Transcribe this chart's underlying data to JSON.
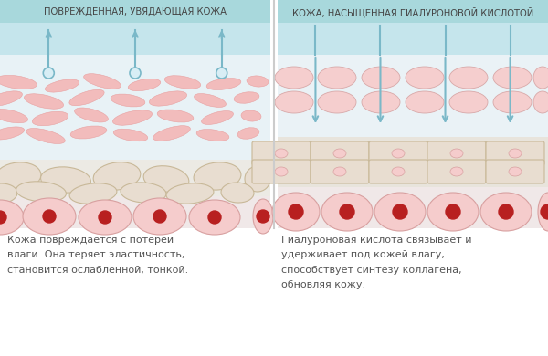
{
  "title_left": "ПОВРЕЖДЕННАЯ, УВЯДАЮЩАЯ КОЖА",
  "title_right": "КОЖА, НАСЫЩЕННАЯ ГИАЛУРОНОВОЙ КИСЛОТОЙ",
  "title_bg": "#a8d8dc",
  "title_color": "#444444",
  "bg_color": "#ffffff",
  "epi_color": "#c5e5ec",
  "dermis_bg": "#e8f4f8",
  "mid_bg": "#eef6f8",
  "fat_bg": "#f0ece4",
  "cell_bottom_bg": "#f0e8e8",
  "collagen_color": "#f2bcbc",
  "collagen_edge": "#e8a0a0",
  "cell_fill": "#f5cece",
  "cell_outline": "#d8a8a8",
  "rect_cell_fill": "#e8ddd0",
  "rect_cell_outline": "#c8b898",
  "big_cell_fill": "#f5cccc",
  "big_cell_outline": "#d8a0a0",
  "nucleus_color": "#b82020",
  "arrow_color": "#7ab8c8",
  "divider_color": "#cccccc",
  "text_left": "Кожа повреждается с потерей\nвлаги. Она теряет эластичность,\nстановится ослабленной, тонкой.",
  "text_right": "Гиалуроновая кислота связывает и\nудерживает под кожей влагу,\nспособствует синтезу коллагена,\nобновляя кожу.",
  "text_color": "#555555"
}
